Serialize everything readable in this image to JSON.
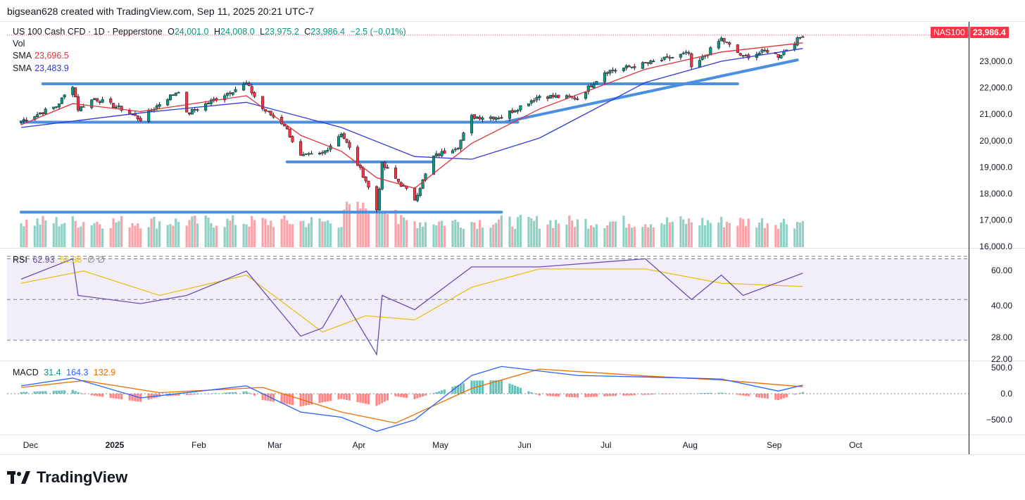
{
  "header": {
    "attribution": "bigsean628 created with TradingView.com, Sep 11, 2025 20:21 UTC-7"
  },
  "legend": {
    "symbol": "US 100 Cash CFD · 1D · Pepperstone",
    "o_label": "O",
    "o": "24,001.0",
    "h_label": "H",
    "h": "24,008.0",
    "l_label": "L",
    "l": "23,975.2",
    "c_label": "C",
    "c": "23,986.4",
    "change": "−2.5 (−0.01%)",
    "vol": "Vol",
    "sma1_label": "SMA",
    "sma1": "23,696.5",
    "sma2_label": "SMA",
    "sma2": "23,483.9"
  },
  "rsi_legend": {
    "label": "RSI",
    "value": "62.93",
    "ma": "56.38",
    "extra": "∅ ∅"
  },
  "macd_legend": {
    "label": "MACD",
    "macd": "31.4",
    "signal": "164.3",
    "hist": "132.9"
  },
  "price_tags": {
    "symbol": "NAS100",
    "price": "23,986.4"
  },
  "logo": {
    "text": "TradingView"
  },
  "colors": {
    "up": "#089981",
    "down": "#f23645",
    "sma_fast": "#e0303a",
    "sma_slow": "#2f3bd6",
    "trendline": "#4a8fe0",
    "rsi": "#6b4fb3",
    "rsi_ma": "#e8c21a",
    "macd": "#2962ff",
    "signal": "#ef6c00"
  },
  "chart_data": [
    {
      "type": "candlestick",
      "title": "US 100 Cash CFD · 1D · Pepperstone",
      "x_ticks": [
        "Dec",
        "2025",
        "Feb",
        "Mar",
        "Apr",
        "May",
        "Jun",
        "Jul",
        "Aug",
        "Sep",
        "Oct"
      ],
      "y_ticks": [
        "23,000.0",
        "22,000.0",
        "21,000.0",
        "20,000.0",
        "19,000.0",
        "18,000.0",
        "17,000.0",
        "16,000.0"
      ],
      "ylim": [
        15950,
        24250
      ],
      "close_path": [
        {
          "x": "2024-11-27",
          "y": 20750
        },
        {
          "x": "2024-12-03",
          "y": 21000
        },
        {
          "x": "2024-12-10",
          "y": 21300
        },
        {
          "x": "2024-12-16",
          "y": 22100
        },
        {
          "x": "2024-12-18",
          "y": 21200
        },
        {
          "x": "2024-12-24",
          "y": 21600
        },
        {
          "x": "2025-01-03",
          "y": 21200
        },
        {
          "x": "2025-01-10",
          "y": 20800
        },
        {
          "x": "2025-01-17",
          "y": 21400
        },
        {
          "x": "2025-01-24",
          "y": 21900
        },
        {
          "x": "2025-01-27",
          "y": 21000
        },
        {
          "x": "2025-02-07",
          "y": 21600
        },
        {
          "x": "2025-02-18",
          "y": 22150
        },
        {
          "x": "2025-02-24",
          "y": 21200
        },
        {
          "x": "2025-03-04",
          "y": 20600
        },
        {
          "x": "2025-03-10",
          "y": 19400
        },
        {
          "x": "2025-03-18",
          "y": 19500
        },
        {
          "x": "2025-03-25",
          "y": 20300
        },
        {
          "x": "2025-04-03",
          "y": 18500
        },
        {
          "x": "2025-04-07",
          "y": 17400
        },
        {
          "x": "2025-04-09",
          "y": 19100
        },
        {
          "x": "2025-04-21",
          "y": 17800
        },
        {
          "x": "2025-04-28",
          "y": 19400
        },
        {
          "x": "2025-05-07",
          "y": 19800
        },
        {
          "x": "2025-05-12",
          "y": 20900
        },
        {
          "x": "2025-05-23",
          "y": 20900
        },
        {
          "x": "2025-06-06",
          "y": 21700
        },
        {
          "x": "2025-06-20",
          "y": 21600
        },
        {
          "x": "2025-06-30",
          "y": 22600
        },
        {
          "x": "2025-07-15",
          "y": 22900
        },
        {
          "x": "2025-07-31",
          "y": 23300
        },
        {
          "x": "2025-08-01",
          "y": 22700
        },
        {
          "x": "2025-08-12",
          "y": 23850
        },
        {
          "x": "2025-08-20",
          "y": 23150
        },
        {
          "x": "2025-08-29",
          "y": 23400
        },
        {
          "x": "2025-09-02",
          "y": 23200
        },
        {
          "x": "2025-09-11",
          "y": 23986.4
        }
      ],
      "sma_fast_path": [
        {
          "x": "2024-11-27",
          "y": 20600
        },
        {
          "x": "2024-12-16",
          "y": 21400
        },
        {
          "x": "2025-01-10",
          "y": 21100
        },
        {
          "x": "2025-02-18",
          "y": 21700
        },
        {
          "x": "2025-03-10",
          "y": 20200
        },
        {
          "x": "2025-03-25",
          "y": 19600
        },
        {
          "x": "2025-04-07",
          "y": 18600
        },
        {
          "x": "2025-04-21",
          "y": 18200
        },
        {
          "x": "2025-05-12",
          "y": 19900
        },
        {
          "x": "2025-06-06",
          "y": 21200
        },
        {
          "x": "2025-07-15",
          "y": 22700
        },
        {
          "x": "2025-08-12",
          "y": 23350
        },
        {
          "x": "2025-09-11",
          "y": 23696.5
        }
      ],
      "sma_slow_path": [
        {
          "x": "2024-11-27",
          "y": 20500
        },
        {
          "x": "2025-01-10",
          "y": 21050
        },
        {
          "x": "2025-02-18",
          "y": 21450
        },
        {
          "x": "2025-03-25",
          "y": 20500
        },
        {
          "x": "2025-04-21",
          "y": 19400
        },
        {
          "x": "2025-05-12",
          "y": 19300
        },
        {
          "x": "2025-06-06",
          "y": 20100
        },
        {
          "x": "2025-07-15",
          "y": 22200
        },
        {
          "x": "2025-08-12",
          "y": 23000
        },
        {
          "x": "2025-09-11",
          "y": 23483.9
        }
      ],
      "levels": [
        {
          "x1": "2024-12-05",
          "x2": "2025-08-18",
          "y": 22150
        },
        {
          "x1": "2024-11-27",
          "x2": "2025-05-29",
          "y": 20700
        },
        {
          "x1": "2025-03-05",
          "x2": "2025-04-28",
          "y": 19200
        },
        {
          "x1": "2024-11-27",
          "x2": "2025-05-23",
          "y": 17300
        },
        {
          "x1": "2025-05-24",
          "x2": "2025-09-09",
          "y1": 20700,
          "y2": 23050
        }
      ]
    },
    {
      "type": "line",
      "title": "RSI",
      "y_ticks": [
        "60.00",
        "40.00",
        "28.00",
        "22.00"
      ],
      "bands": [
        70,
        50,
        30
      ],
      "ylim": [
        20,
        75
      ],
      "rsi_path": [
        {
          "x": "2024-11-27",
          "y": 60
        },
        {
          "x": "2024-12-16",
          "y": 70
        },
        {
          "x": "2024-12-18",
          "y": 52
        },
        {
          "x": "2025-01-10",
          "y": 48
        },
        {
          "x": "2025-01-27",
          "y": 52
        },
        {
          "x": "2025-02-18",
          "y": 64
        },
        {
          "x": "2025-03-10",
          "y": 32
        },
        {
          "x": "2025-03-18",
          "y": 36
        },
        {
          "x": "2025-03-25",
          "y": 52
        },
        {
          "x": "2025-04-07",
          "y": 23
        },
        {
          "x": "2025-04-09",
          "y": 52
        },
        {
          "x": "2025-04-21",
          "y": 45
        },
        {
          "x": "2025-05-12",
          "y": 66
        },
        {
          "x": "2025-06-06",
          "y": 66
        },
        {
          "x": "2025-07-15",
          "y": 70
        },
        {
          "x": "2025-08-01",
          "y": 50
        },
        {
          "x": "2025-08-12",
          "y": 62
        },
        {
          "x": "2025-08-20",
          "y": 52
        },
        {
          "x": "2025-09-11",
          "y": 62.93
        }
      ],
      "rsi_ma_path": [
        {
          "x": "2024-11-27",
          "y": 58
        },
        {
          "x": "2024-12-20",
          "y": 64
        },
        {
          "x": "2025-01-17",
          "y": 52
        },
        {
          "x": "2025-02-18",
          "y": 62
        },
        {
          "x": "2025-03-18",
          "y": 34
        },
        {
          "x": "2025-04-03",
          "y": 42
        },
        {
          "x": "2025-04-21",
          "y": 40
        },
        {
          "x": "2025-05-12",
          "y": 56
        },
        {
          "x": "2025-06-06",
          "y": 65
        },
        {
          "x": "2025-07-15",
          "y": 65
        },
        {
          "x": "2025-08-12",
          "y": 58
        },
        {
          "x": "2025-09-11",
          "y": 56.38
        }
      ]
    },
    {
      "type": "line",
      "title": "MACD",
      "y_ticks": [
        "500.0",
        "0.0",
        "−500.0"
      ],
      "ylim": [
        -780,
        620
      ],
      "macd_path": [
        {
          "x": "2024-11-27",
          "y": 150
        },
        {
          "x": "2024-12-16",
          "y": 300
        },
        {
          "x": "2025-01-10",
          "y": -80
        },
        {
          "x": "2025-02-18",
          "y": 150
        },
        {
          "x": "2025-03-10",
          "y": -350
        },
        {
          "x": "2025-03-25",
          "y": -450
        },
        {
          "x": "2025-04-07",
          "y": -720
        },
        {
          "x": "2025-04-21",
          "y": -500
        },
        {
          "x": "2025-05-12",
          "y": 350
        },
        {
          "x": "2025-05-23",
          "y": 520
        },
        {
          "x": "2025-06-20",
          "y": 350
        },
        {
          "x": "2025-07-31",
          "y": 300
        },
        {
          "x": "2025-08-12",
          "y": 280
        },
        {
          "x": "2025-09-02",
          "y": 50
        },
        {
          "x": "2025-09-11",
          "y": 164.3
        }
      ],
      "signal_path": [
        {
          "x": "2024-11-27",
          "y": 120
        },
        {
          "x": "2024-12-20",
          "y": 250
        },
        {
          "x": "2025-01-17",
          "y": 20
        },
        {
          "x": "2025-02-24",
          "y": 120
        },
        {
          "x": "2025-03-25",
          "y": -350
        },
        {
          "x": "2025-04-14",
          "y": -560
        },
        {
          "x": "2025-05-12",
          "y": 100
        },
        {
          "x": "2025-06-06",
          "y": 470
        },
        {
          "x": "2025-07-15",
          "y": 340
        },
        {
          "x": "2025-08-12",
          "y": 260
        },
        {
          "x": "2025-09-11",
          "y": 132.9
        }
      ]
    }
  ]
}
